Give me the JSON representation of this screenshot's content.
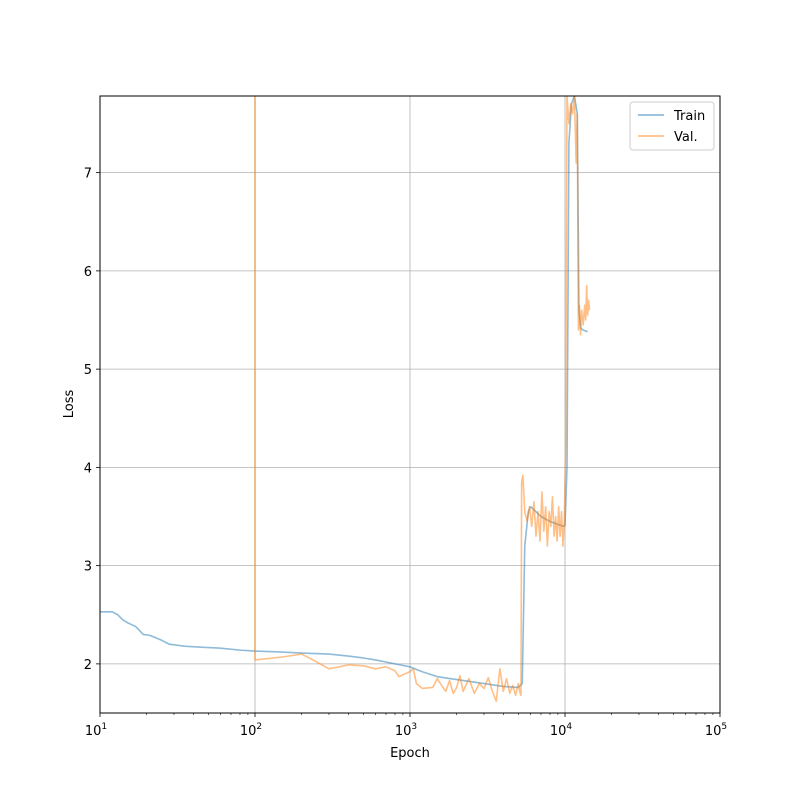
{
  "chart_data": {
    "type": "line",
    "title": "",
    "xlabel": "Epoch",
    "ylabel": "Loss",
    "xscale": "log",
    "xlim": [
      10,
      100000
    ],
    "ylim": [
      1.5,
      7.78
    ],
    "grid": true,
    "legend_position": "top-right",
    "x_major_ticks": [
      {
        "value": 10,
        "base": "10",
        "exp": "1"
      },
      {
        "value": 100,
        "base": "10",
        "exp": "2"
      },
      {
        "value": 1000,
        "base": "10",
        "exp": "3"
      },
      {
        "value": 10000,
        "base": "10",
        "exp": "4"
      },
      {
        "value": 100000,
        "base": "10",
        "exp": "5"
      }
    ],
    "y_ticks": [
      "2",
      "3",
      "4",
      "5",
      "6",
      "7"
    ],
    "series": [
      {
        "name": "Train",
        "color": "#1f77b4",
        "points": [
          [
            10,
            2.53
          ],
          [
            12,
            2.53
          ],
          [
            13,
            2.5
          ],
          [
            14,
            2.45
          ],
          [
            15,
            2.42
          ],
          [
            17,
            2.38
          ],
          [
            19,
            2.3
          ],
          [
            21,
            2.29
          ],
          [
            25,
            2.24
          ],
          [
            28,
            2.2
          ],
          [
            35,
            2.18
          ],
          [
            45,
            2.17
          ],
          [
            60,
            2.16
          ],
          [
            80,
            2.14
          ],
          [
            100,
            2.13
          ],
          [
            150,
            2.12
          ],
          [
            200,
            2.11
          ],
          [
            300,
            2.1
          ],
          [
            400,
            2.08
          ],
          [
            500,
            2.06
          ],
          [
            600,
            2.04
          ],
          [
            800,
            2.0
          ],
          [
            1000,
            1.97
          ],
          [
            1200,
            1.92
          ],
          [
            1500,
            1.87
          ],
          [
            2000,
            1.84
          ],
          [
            3000,
            1.8
          ],
          [
            4000,
            1.77
          ],
          [
            5000,
            1.76
          ],
          [
            5300,
            1.8
          ],
          [
            5500,
            3.2
          ],
          [
            5800,
            3.55
          ],
          [
            6000,
            3.6
          ],
          [
            7000,
            3.5
          ],
          [
            8000,
            3.45
          ],
          [
            9000,
            3.42
          ],
          [
            9800,
            3.4
          ],
          [
            10000,
            3.41
          ],
          [
            10300,
            4.0
          ],
          [
            10600,
            7.3
          ],
          [
            11000,
            7.7
          ],
          [
            11500,
            7.78
          ],
          [
            12000,
            7.6
          ],
          [
            12300,
            5.6
          ],
          [
            12600,
            5.42
          ],
          [
            13000,
            5.4
          ],
          [
            14000,
            5.38
          ]
        ]
      },
      {
        "name": "Val.",
        "color": "#ff7f0e",
        "points": [
          [
            100,
            7.78
          ],
          [
            100,
            2.04
          ],
          [
            150,
            2.07
          ],
          [
            200,
            2.1
          ],
          [
            250,
            2.02
          ],
          [
            300,
            1.95
          ],
          [
            350,
            1.97
          ],
          [
            400,
            1.99
          ],
          [
            500,
            1.98
          ],
          [
            600,
            1.95
          ],
          [
            700,
            1.97
          ],
          [
            800,
            1.93
          ],
          [
            850,
            1.87
          ],
          [
            900,
            1.89
          ],
          [
            1000,
            1.92
          ],
          [
            1050,
            1.95
          ],
          [
            1100,
            1.8
          ],
          [
            1200,
            1.75
          ],
          [
            1400,
            1.76
          ],
          [
            1500,
            1.85
          ],
          [
            1600,
            1.78
          ],
          [
            1700,
            1.72
          ],
          [
            1800,
            1.83
          ],
          [
            1900,
            1.7
          ],
          [
            2000,
            1.76
          ],
          [
            2100,
            1.88
          ],
          [
            2200,
            1.72
          ],
          [
            2400,
            1.85
          ],
          [
            2600,
            1.7
          ],
          [
            2800,
            1.8
          ],
          [
            3000,
            1.75
          ],
          [
            3200,
            1.86
          ],
          [
            3400,
            1.72
          ],
          [
            3600,
            1.62
          ],
          [
            3800,
            1.95
          ],
          [
            4000,
            1.72
          ],
          [
            4200,
            1.85
          ],
          [
            4400,
            1.7
          ],
          [
            4600,
            1.78
          ],
          [
            4800,
            1.68
          ],
          [
            5000,
            1.8
          ],
          [
            5100,
            1.72
          ],
          [
            5200,
            1.68
          ],
          [
            5250,
            3.85
          ],
          [
            5350,
            3.92
          ],
          [
            5500,
            3.55
          ],
          [
            5700,
            3.45
          ],
          [
            5900,
            3.6
          ],
          [
            6100,
            3.4
          ],
          [
            6300,
            3.65
          ],
          [
            6500,
            3.3
          ],
          [
            6700,
            3.55
          ],
          [
            6900,
            3.25
          ],
          [
            7100,
            3.75
          ],
          [
            7300,
            3.35
          ],
          [
            7500,
            3.6
          ],
          [
            7700,
            3.2
          ],
          [
            7900,
            3.55
          ],
          [
            8100,
            3.4
          ],
          [
            8300,
            3.7
          ],
          [
            8500,
            3.3
          ],
          [
            8700,
            3.5
          ],
          [
            8900,
            3.25
          ],
          [
            9100,
            3.6
          ],
          [
            9300,
            3.3
          ],
          [
            9500,
            3.55
          ],
          [
            9700,
            3.2
          ],
          [
            9900,
            3.45
          ],
          [
            10100,
            4.2
          ],
          [
            10300,
            7.78
          ],
          [
            10600,
            7.5
          ],
          [
            10900,
            7.7
          ],
          [
            11200,
            7.6
          ],
          [
            11500,
            7.78
          ],
          [
            11800,
            7.1
          ],
          [
            12000,
            7.6
          ],
          [
            12200,
            5.4
          ],
          [
            12400,
            5.65
          ],
          [
            12600,
            5.35
          ],
          [
            12800,
            5.6
          ],
          [
            13100,
            5.45
          ],
          [
            13400,
            5.65
          ],
          [
            13600,
            5.5
          ],
          [
            13800,
            5.85
          ],
          [
            14000,
            5.55
          ],
          [
            14200,
            5.7
          ],
          [
            14400,
            5.6
          ]
        ]
      }
    ]
  }
}
